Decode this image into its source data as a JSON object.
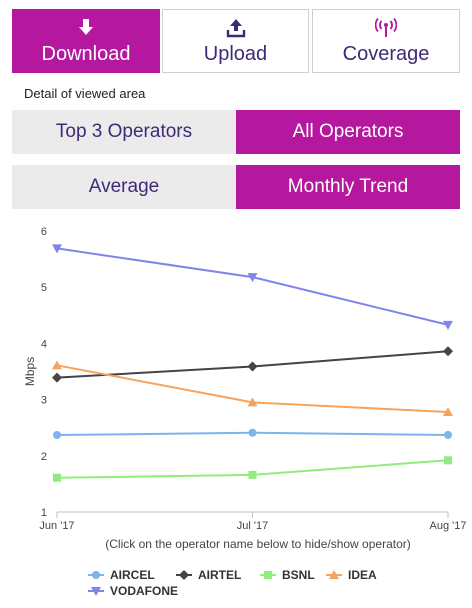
{
  "tabs": [
    {
      "label": "Download",
      "icon": "download-icon",
      "active": true
    },
    {
      "label": "Upload",
      "icon": "upload-icon",
      "active": false
    },
    {
      "label": "Coverage",
      "icon": "signal-icon",
      "active": false
    }
  ],
  "detail_label": "Detail of viewed area",
  "operator_toggle": {
    "left": "Top 3 Operators",
    "right": "All Operators",
    "active": "right"
  },
  "view_toggle": {
    "left": "Average",
    "right": "Monthly Trend",
    "active": "right"
  },
  "colors": {
    "accent": "#b5179e",
    "text_primary": "#3f2a78",
    "segment_bg": "#ebebeb"
  },
  "chart_data": {
    "type": "line",
    "x": [
      "Jun '17",
      "Jul '17",
      "Aug '17"
    ],
    "ylabel": "Mbps",
    "ylim": [
      1,
      6
    ],
    "yticks": [
      "1",
      "2",
      "3",
      "4",
      "5",
      "6"
    ],
    "grid": false,
    "hint": "(Click on the operator name below to hide/show operator)",
    "series": [
      {
        "name": "AIRCEL",
        "values": [
          2.37,
          2.41,
          2.37
        ],
        "color": "#7cb5ec",
        "marker": "circle"
      },
      {
        "name": "AIRTEL",
        "values": [
          3.39,
          3.59,
          3.86
        ],
        "color": "#434348",
        "marker": "diamond"
      },
      {
        "name": "BSNL",
        "values": [
          1.61,
          1.66,
          1.92
        ],
        "color": "#90ed7d",
        "marker": "square"
      },
      {
        "name": "IDEA",
        "values": [
          3.61,
          2.95,
          2.78
        ],
        "color": "#f7a35c",
        "marker": "triangle"
      },
      {
        "name": "VODAFONE",
        "values": [
          5.69,
          5.18,
          4.33
        ],
        "color": "#8085e9",
        "marker": "triangle-down"
      }
    ]
  }
}
